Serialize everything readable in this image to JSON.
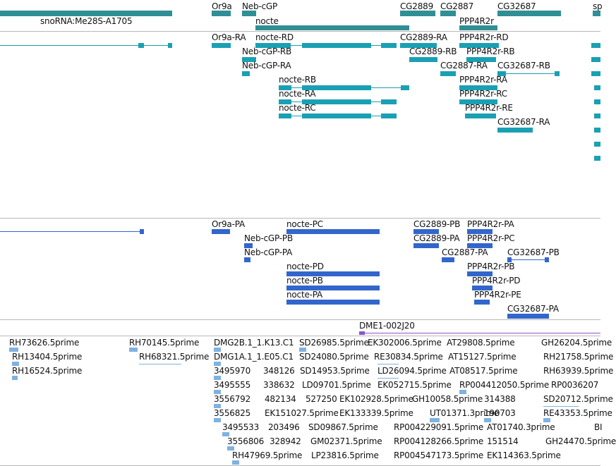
{
  "colors": {
    "gene": "#2f8f95",
    "transcript": "#1aa0b4",
    "protein": "#3366cc",
    "est": "#7fb2e0",
    "clone": "#8a55cc",
    "divider": "#b8b8b8"
  },
  "genes": {
    "labels": [
      "snoRNA:Me28S-A1705",
      "Or9a",
      "Neb-cGP",
      "nocte",
      "CG2889",
      "CG2887",
      "PPP4R2r",
      "CG32687",
      "sp"
    ]
  },
  "transcripts": {
    "labels": [
      "Or9a-RA",
      "nocte-RD",
      "CG2889-RA",
      "PPP4R2r-RD",
      "Neb-cGP-RB",
      "CG2889-RB",
      "PPP4R2r-RB",
      "Neb-cGP-RA",
      "CG2887-RA",
      "CG32687-RB",
      "nocte-RB",
      "PPP4R2r-RA",
      "nocte-RA",
      "PPP4R2r-RC",
      "nocte-RC",
      "PPP4R2r-RE",
      "CG32687-RA"
    ]
  },
  "proteins": {
    "labels": [
      "Or9a-PA",
      "nocte-PC",
      "CG2889-PB",
      "PPP4R2r-PA",
      "Neb-cGP-PB",
      "CG2889-PA",
      "PPP4R2r-PC",
      "Neb-cGP-PA",
      "CG2887-PA",
      "CG32687-PB",
      "nocte-PD",
      "PPP4R2r-PB",
      "nocte-PB",
      "PPP4R2r-PD",
      "nocte-PA",
      "PPP4R2r-PE",
      "CG32687-PA"
    ]
  },
  "clone": {
    "label": "DME1-002J20"
  },
  "ests": {
    "labels": [
      "RH73626.5prime",
      "RH13404.5prime",
      "RH16524.5prime",
      "RH70145.5prime",
      "RH68321.5prime",
      "DMG2B.1_1.K13.C1",
      "DMG1A.1_1.E05.C1",
      "3495970",
      "3495555",
      "3556792",
      "3556825",
      "3495533",
      "3556806",
      "RH47969.5prime",
      "348126",
      "338632",
      "482134",
      "EK151027.5prime",
      "203496",
      "328942",
      "SD26985.5prime",
      "SD24080.5prime",
      "SD14953.5prime",
      "LD09701.5prime",
      "527250",
      "SD09867.5prime",
      "GM02371.5prime",
      "LP23816.5prime",
      "EK302006.5prime",
      "RE30834.5prime",
      "LD26094.5prime",
      "EK052715.5prime",
      "EK102928.5prime",
      "EK133339.5prime",
      "GH10058.5prime",
      "UT01371.3prime",
      "RP004229091.5prime",
      "RP004128266.5prime",
      "RP004547173.5prime",
      "AT29808.5prime",
      "AT15127.5prime",
      "AT08517.5prime",
      "RP004412050.5prime",
      "314388",
      "190703",
      "AT01740.3prime",
      "151514",
      "EK114363.5prime",
      "GH26204.5prime",
      "RH21758.5prime",
      "RH63939.5prime",
      "RP0036207",
      "SD20712.5prime",
      "RE43353.5prime",
      "GH24470.5prime",
      "BI"
    ]
  }
}
